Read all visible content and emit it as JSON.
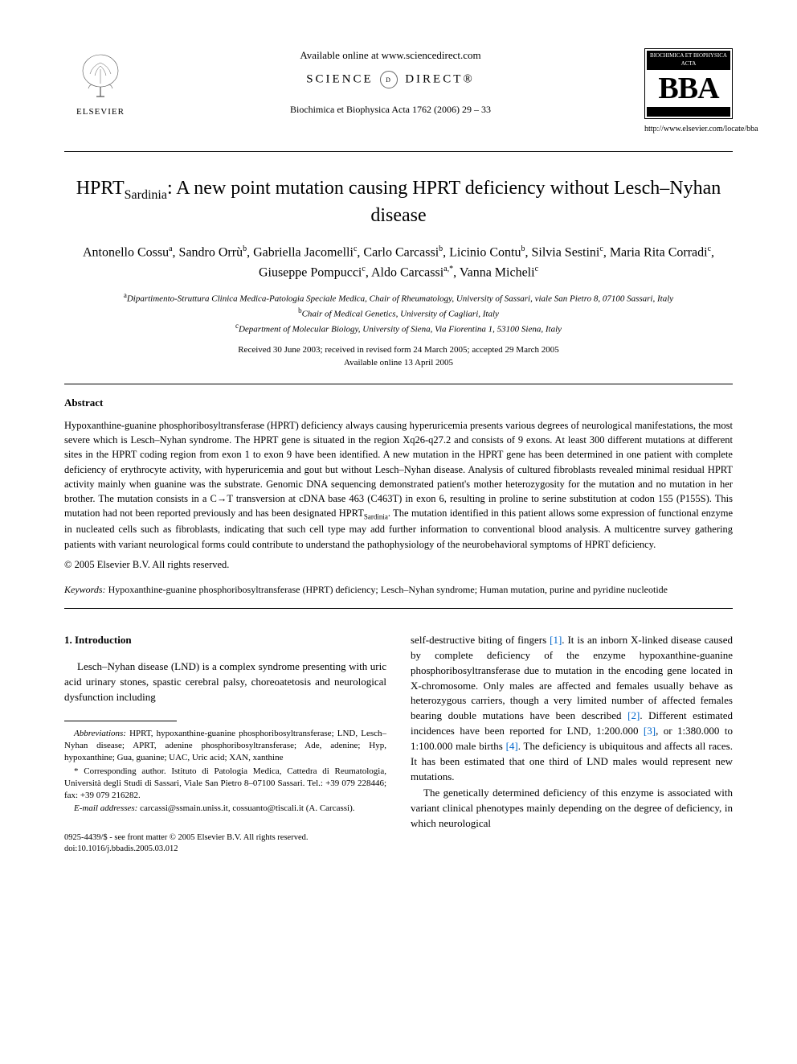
{
  "header": {
    "elsevier_label": "ELSEVIER",
    "available_online": "Available online at www.sciencedirect.com",
    "sciencedirect_left": "SCIENCE",
    "sciencedirect_right": "DIRECT®",
    "journal_ref": "Biochimica et Biophysica Acta 1762 (2006) 29 – 33",
    "bba_top": "BIOCHIMICA ET BIOPHYSICA ACTA",
    "bba_letters": "BBA",
    "bba_url": "http://www.elsevier.com/locate/bba"
  },
  "title_html": "HPRT<sub>Sardinia</sub>: A new point mutation causing HPRT deficiency without Lesch–Nyhan disease",
  "authors_html": "Antonello Cossu<sup>a</sup>, Sandro Orrù<sup>b</sup>, Gabriella Jacomelli<sup>c</sup>, Carlo Carcassi<sup>b</sup>, Licinio Contu<sup>b</sup>, Silvia Sestini<sup>c</sup>, Maria Rita Corradi<sup>c</sup>, Giuseppe Pompucci<sup>c</sup>, Aldo Carcassi<sup>a,*</sup>, Vanna Micheli<sup>c</sup>",
  "affiliations": {
    "a": "Dipartimento-Struttura Clinica Medica-Patologia Speciale Medica, Chair of Rheumatology, University of Sassari, viale San Pietro 8, 07100 Sassari, Italy",
    "b": "Chair of Medical Genetics, University of Cagliari, Italy",
    "c": "Department of Molecular Biology, University of Siena, Via Fiorentina 1, 53100 Siena, Italy"
  },
  "dates": {
    "received": "Received 30 June 2003; received in revised form 24 March 2005; accepted 29 March 2005",
    "available": "Available online 13 April 2005"
  },
  "abstract": {
    "heading": "Abstract",
    "text_html": "Hypoxanthine-guanine phosphoribosyltransferase (HPRT) deficiency always causing hyperuricemia presents various degrees of neurological manifestations, the most severe which is Lesch–Nyhan syndrome. The HPRT gene is situated in the region Xq26-q27.2 and consists of 9 exons. At least 300 different mutations at different sites in the HPRT coding region from exon 1 to exon 9 have been identified. A new mutation in the HPRT gene has been determined in one patient with complete deficiency of erythrocyte activity, with hyperuricemia and gout but without Lesch–Nyhan disease. Analysis of cultured fibroblasts revealed minimal residual HPRT activity mainly when guanine was the substrate. Genomic DNA sequencing demonstrated patient's mother heterozygosity for the mutation and no mutation in her brother. The mutation consists in a C→T transversion at cDNA base 463 (C463T) in exon 6, resulting in proline to serine substitution at codon 155 (P155S). This mutation had not been reported previously and has been designated HPRT<sub>Sardinia</sub>. The mutation identified in this patient allows some expression of functional enzyme in nucleated cells such as fibroblasts, indicating that such cell type may add further information to conventional blood analysis. A multicentre survey gathering patients with variant neurological forms could contribute to understand the pathophysiology of the neurobehavioral symptoms of HPRT deficiency.",
    "copyright": "© 2005 Elsevier B.V. All rights reserved."
  },
  "keywords": {
    "label": "Keywords:",
    "text": "Hypoxanthine-guanine phosphoribosyltransferase (HPRT) deficiency; Lesch–Nyhan syndrome; Human mutation, purine and pyridine nucleotide"
  },
  "intro": {
    "heading": "1. Introduction",
    "p1_html": "Lesch–Nyhan disease (LND) is a complex syndrome presenting with uric acid urinary stones, spastic cerebral palsy, choreoatetosis and neurological dysfunction including",
    "p2_html": "self-destructive biting of fingers <span class=\"ref-link\">[1]</span>. It is an inborn X-linked disease caused by complete deficiency of the enzyme hypoxanthine-guanine phosphoribosyltransferase due to mutation in the encoding gene located in X-chromosome. Only males are affected and females usually behave as heterozygous carriers, though a very limited number of affected females bearing double mutations have been described <span class=\"ref-link\">[2]</span>. Different estimated incidences have been reported for LND, 1:200.000 <span class=\"ref-link\">[3]</span>, or 1:380.000 to 1:100.000 male births <span class=\"ref-link\">[4]</span>. The deficiency is ubiquitous and affects all races. It has been estimated that one third of LND males would represent new mutations.",
    "p3_html": "The genetically determined deficiency of this enzyme is associated with variant clinical phenotypes mainly depending on the degree of deficiency, in which neurological"
  },
  "footnotes": {
    "abbrev_label": "Abbreviations:",
    "abbrev_text": "HPRT, hypoxanthine-guanine phosphoribosyltransferase; LND, Lesch–Nyhan disease; APRT, adenine phosphoribosyltransferase; Ade, adenine; Hyp, hypoxanthine; Gua, guanine; UAC, Uric acid; XAN, xanthine",
    "corr_label": "* Corresponding author.",
    "corr_text": "Istituto di Patologia Medica, Cattedra di Reumatologia, Università degli Studi di Sassari, Viale San Pietro 8–07100 Sassari. Tel.: +39 079 228446; fax: +39 079 216282.",
    "email_label": "E-mail addresses:",
    "email_text": "carcassi@ssmain.uniss.it, cossuanto@tiscali.it (A. Carcassi)."
  },
  "bottom": {
    "issn": "0925-4439/$ - see front matter © 2005 Elsevier B.V. All rights reserved.",
    "doi": "doi:10.1016/j.bbadis.2005.03.012"
  },
  "colors": {
    "text": "#000000",
    "background": "#ffffff",
    "link": "#0066cc"
  }
}
